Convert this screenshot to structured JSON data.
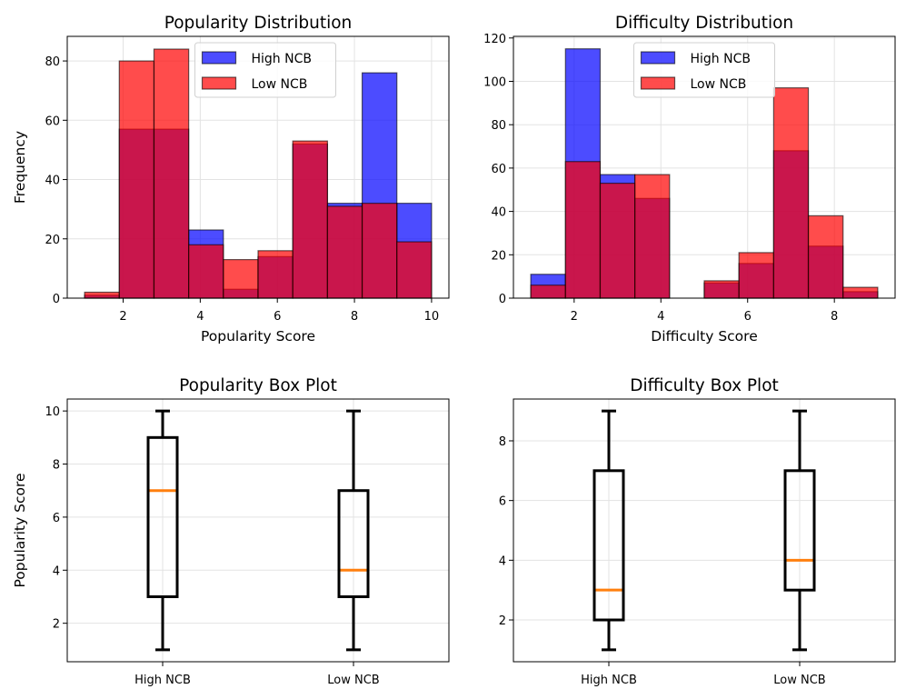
{
  "chart_data": [
    {
      "type": "bar",
      "subtype": "overlaid-histogram",
      "title": "Popularity Distribution",
      "xlabel": "Popularity Score",
      "ylabel": "Frequency",
      "bin_range": [
        1,
        10
      ],
      "bins": 10,
      "xlim": [
        0.55,
        10.45
      ],
      "ylim": [
        0,
        88.3
      ],
      "xticks": [
        2,
        4,
        6,
        8,
        10
      ],
      "yticks": [
        0,
        20,
        40,
        60,
        80
      ],
      "grid": true,
      "legend": "top-center",
      "series": [
        {
          "name": "High NCB",
          "color": "#0000ff",
          "values": [
            1,
            57,
            57,
            23,
            3,
            14,
            52,
            32,
            76,
            32
          ]
        },
        {
          "name": "Low NCB",
          "color": "#ff0000",
          "values": [
            2,
            80,
            84,
            18,
            13,
            16,
            53,
            31,
            32,
            19
          ]
        }
      ]
    },
    {
      "type": "bar",
      "subtype": "overlaid-histogram",
      "title": "Difficulty Distribution",
      "xlabel": "Difficulty Score",
      "ylabel": "",
      "bin_range": [
        1,
        9
      ],
      "bins": 10,
      "xlim": [
        0.6,
        9.4
      ],
      "ylim": [
        0,
        120.75
      ],
      "xticks": [
        2,
        4,
        6,
        8
      ],
      "yticks": [
        0,
        20,
        40,
        60,
        80,
        100,
        120
      ],
      "grid": true,
      "legend": "top-center",
      "series": [
        {
          "name": "High NCB",
          "color": "#0000ff",
          "values": [
            11,
            115,
            57,
            46,
            0,
            7,
            16,
            68,
            24,
            3
          ]
        },
        {
          "name": "Low NCB",
          "color": "#ff0000",
          "values": [
            6,
            63,
            53,
            57,
            0,
            8,
            21,
            97,
            38,
            5
          ]
        }
      ]
    },
    {
      "type": "box",
      "title": "Popularity Box Plot",
      "xlabel": "",
      "ylabel": "Popularity Score",
      "categories": [
        "High NCB",
        "Low NCB"
      ],
      "ylim": [
        0.55,
        10.45
      ],
      "yticks": [
        2,
        4,
        6,
        8,
        10
      ],
      "grid": true,
      "median_color": "#ff7f0e",
      "boxes": [
        {
          "min": 1,
          "q1": 3,
          "median": 7,
          "q3": 9,
          "max": 10
        },
        {
          "min": 1,
          "q1": 3,
          "median": 4,
          "q3": 7,
          "max": 10
        }
      ]
    },
    {
      "type": "box",
      "title": "Difficulty Box Plot",
      "xlabel": "",
      "ylabel": "",
      "categories": [
        "High NCB",
        "Low NCB"
      ],
      "ylim": [
        0.6,
        9.4
      ],
      "yticks": [
        2,
        4,
        6,
        8
      ],
      "grid": true,
      "median_color": "#ff7f0e",
      "boxes": [
        {
          "min": 1,
          "q1": 2,
          "median": 3,
          "q3": 7,
          "max": 9
        },
        {
          "min": 1,
          "q1": 3,
          "median": 4,
          "q3": 7,
          "max": 9
        }
      ]
    }
  ]
}
